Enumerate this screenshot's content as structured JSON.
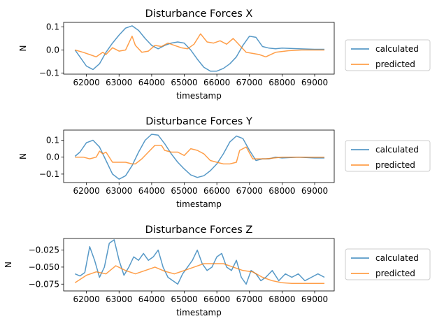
{
  "chart_data": [
    {
      "type": "line",
      "title": "Disturbance Forces X",
      "xlabel": "timestamp",
      "ylabel": "N",
      "xlim": [
        61300,
        69600
      ],
      "ylim": [
        -0.105,
        0.12
      ],
      "xticks": [
        62000,
        63000,
        64000,
        65000,
        66000,
        67000,
        68000,
        69000
      ],
      "yticks": [
        -0.1,
        0.0,
        0.1
      ],
      "ytick_labels": [
        "−0.1",
        "0.0",
        "0.1"
      ],
      "legend": "right-outside",
      "grid": false,
      "series": [
        {
          "name": "calculated",
          "color": "#1f77b4",
          "x": [
            61650,
            61800,
            62000,
            62200,
            62400,
            62600,
            62800,
            63000,
            63200,
            63400,
            63600,
            63800,
            64000,
            64200,
            64400,
            64600,
            64800,
            65000,
            65200,
            65400,
            65600,
            65800,
            66000,
            66200,
            66400,
            66600,
            66800,
            67000,
            67200,
            67400,
            67600,
            67800,
            68000,
            68500,
            69000,
            69300
          ],
          "y": [
            0.0,
            -0.03,
            -0.07,
            -0.085,
            -0.06,
            -0.01,
            0.03,
            0.065,
            0.095,
            0.105,
            0.085,
            0.05,
            0.02,
            0.005,
            0.02,
            0.03,
            0.035,
            0.03,
            0.0,
            -0.04,
            -0.075,
            -0.092,
            -0.092,
            -0.08,
            -0.06,
            -0.03,
            0.02,
            0.06,
            0.055,
            0.015,
            0.008,
            0.005,
            0.008,
            0.005,
            0.003,
            0.003
          ]
        },
        {
          "name": "predicted",
          "color": "#ff7f0e",
          "x": [
            61650,
            61900,
            62100,
            62300,
            62500,
            62600,
            62800,
            63000,
            63200,
            63400,
            63500,
            63700,
            63900,
            64100,
            64300,
            64500,
            64700,
            64900,
            65100,
            65300,
            65500,
            65700,
            65900,
            66100,
            66300,
            66500,
            66700,
            66900,
            67100,
            67300,
            67500,
            67800,
            68200,
            68600,
            69000,
            69300
          ],
          "y": [
            0.0,
            -0.01,
            -0.02,
            -0.03,
            -0.01,
            -0.02,
            0.01,
            -0.005,
            0.0,
            0.06,
            0.02,
            -0.01,
            -0.005,
            0.02,
            0.015,
            0.03,
            0.02,
            0.01,
            0.005,
            0.025,
            0.07,
            0.035,
            0.03,
            0.04,
            0.025,
            0.05,
            0.02,
            -0.01,
            -0.015,
            -0.02,
            -0.03,
            -0.01,
            -0.003,
            0.0,
            0.0,
            0.0
          ]
        }
      ]
    },
    {
      "type": "line",
      "title": "Disturbance Forces Y",
      "xlabel": "timestamp",
      "ylabel": "N",
      "xlim": [
        61300,
        69600
      ],
      "ylim": [
        -0.15,
        0.16
      ],
      "xticks": [
        62000,
        63000,
        64000,
        65000,
        66000,
        67000,
        68000,
        69000
      ],
      "yticks": [
        -0.1,
        0.0,
        0.1
      ],
      "ytick_labels": [
        "−0.1",
        "0.0",
        "0.1"
      ],
      "legend": "right-outside",
      "grid": false,
      "series": [
        {
          "name": "calculated",
          "color": "#1f77b4",
          "x": [
            61650,
            61800,
            62000,
            62200,
            62400,
            62600,
            62800,
            63000,
            63200,
            63400,
            63600,
            63800,
            64000,
            64200,
            64400,
            64600,
            64800,
            65000,
            65200,
            65400,
            65600,
            65800,
            66000,
            66200,
            66400,
            66600,
            66800,
            67000,
            67200,
            67400,
            67600,
            67800,
            68000,
            68500,
            69000,
            69300
          ],
          "y": [
            0.005,
            0.03,
            0.085,
            0.1,
            0.06,
            -0.02,
            -0.1,
            -0.13,
            -0.11,
            -0.05,
            0.03,
            0.1,
            0.135,
            0.13,
            0.08,
            0.02,
            -0.03,
            -0.07,
            -0.105,
            -0.12,
            -0.11,
            -0.08,
            -0.04,
            0.02,
            0.09,
            0.125,
            0.11,
            0.04,
            -0.02,
            -0.01,
            -0.01,
            0.0,
            -0.005,
            0.0,
            -0.005,
            -0.005
          ]
        },
        {
          "name": "predicted",
          "color": "#ff7f0e",
          "x": [
            61650,
            61900,
            62100,
            62300,
            62400,
            62500,
            62600,
            62800,
            63000,
            63200,
            63400,
            63500,
            63700,
            63900,
            64100,
            64300,
            64400,
            64600,
            64800,
            65000,
            65200,
            65400,
            65600,
            65800,
            66000,
            66200,
            66400,
            66600,
            66700,
            66900,
            67100,
            67300,
            67500,
            68000,
            68500,
            69000,
            69300
          ],
          "y": [
            0.0,
            0.0,
            -0.01,
            0.0,
            0.035,
            0.02,
            0.03,
            -0.03,
            -0.03,
            -0.03,
            -0.04,
            -0.04,
            -0.01,
            0.03,
            0.07,
            0.07,
            0.04,
            0.03,
            0.03,
            0.01,
            0.05,
            0.04,
            0.02,
            -0.02,
            -0.03,
            -0.04,
            -0.04,
            -0.03,
            0.04,
            0.06,
            -0.01,
            -0.01,
            -0.01,
            0.0,
            0.0,
            0.0,
            0.0
          ]
        }
      ]
    },
    {
      "type": "line",
      "title": "Disturbance Forces Z",
      "xlabel": "timestamp",
      "ylabel": "N",
      "xlim": [
        61300,
        69600
      ],
      "ylim": [
        -0.085,
        -0.008
      ],
      "xticks": [
        62000,
        63000,
        64000,
        65000,
        66000,
        67000,
        68000,
        69000
      ],
      "yticks": [
        -0.075,
        -0.05,
        -0.025
      ],
      "ytick_labels": [
        "−0.075",
        "−0.050",
        "−0.025"
      ],
      "legend": "right-outside",
      "grid": false,
      "series": [
        {
          "name": "calculated",
          "color": "#1f77b4",
          "x": [
            61650,
            61800,
            61950,
            62100,
            62250,
            62400,
            62550,
            62700,
            62850,
            63000,
            63150,
            63300,
            63450,
            63600,
            63750,
            63900,
            64050,
            64200,
            64350,
            64500,
            64650,
            64800,
            64950,
            65100,
            65250,
            65400,
            65550,
            65700,
            65850,
            66000,
            66150,
            66300,
            66450,
            66600,
            66750,
            66900,
            67050,
            67200,
            67350,
            67500,
            67700,
            67900,
            68100,
            68300,
            68500,
            68700,
            68900,
            69100,
            69300
          ],
          "y": [
            -0.06,
            -0.063,
            -0.058,
            -0.02,
            -0.04,
            -0.065,
            -0.05,
            -0.015,
            -0.01,
            -0.04,
            -0.062,
            -0.05,
            -0.035,
            -0.04,
            -0.03,
            -0.04,
            -0.035,
            -0.025,
            -0.05,
            -0.065,
            -0.07,
            -0.075,
            -0.06,
            -0.05,
            -0.04,
            -0.025,
            -0.045,
            -0.055,
            -0.05,
            -0.035,
            -0.03,
            -0.05,
            -0.055,
            -0.04,
            -0.065,
            -0.075,
            -0.055,
            -0.06,
            -0.07,
            -0.065,
            -0.055,
            -0.07,
            -0.06,
            -0.065,
            -0.06,
            -0.07,
            -0.065,
            -0.06,
            -0.065
          ]
        },
        {
          "name": "predicted",
          "color": "#ff7f0e",
          "x": [
            61650,
            62000,
            62300,
            62600,
            62900,
            63200,
            63500,
            63800,
            64100,
            64400,
            64700,
            65000,
            65300,
            65600,
            65900,
            66200,
            66500,
            66800,
            67100,
            67400,
            67700,
            68000,
            68300,
            68600,
            69000,
            69300
          ],
          "y": [
            -0.073,
            -0.062,
            -0.057,
            -0.06,
            -0.048,
            -0.055,
            -0.06,
            -0.055,
            -0.05,
            -0.056,
            -0.06,
            -0.055,
            -0.05,
            -0.045,
            -0.045,
            -0.045,
            -0.05,
            -0.055,
            -0.057,
            -0.065,
            -0.07,
            -0.073,
            -0.074,
            -0.074,
            -0.074,
            -0.074
          ]
        }
      ]
    }
  ]
}
